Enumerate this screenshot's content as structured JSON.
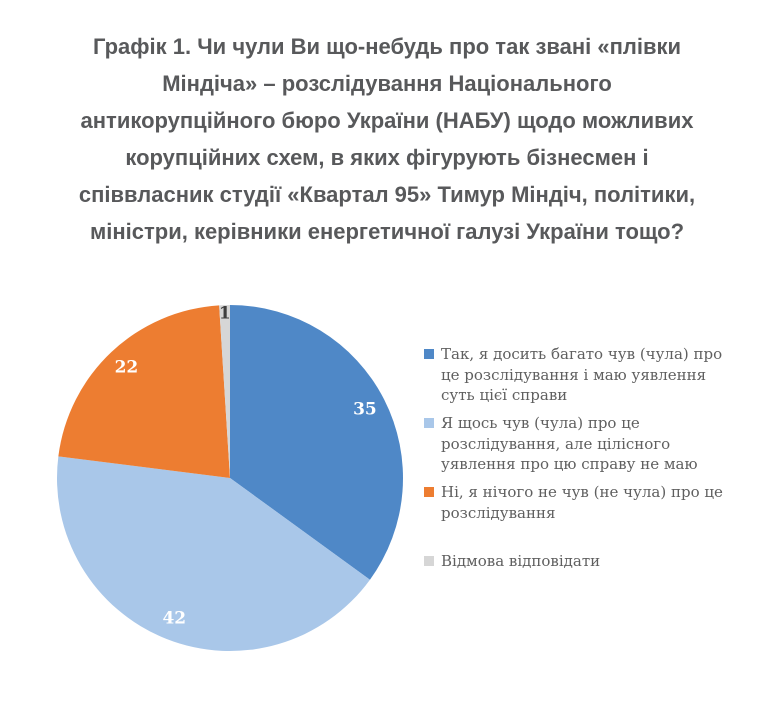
{
  "header": {
    "title_lines": [
      "Графік 1. Чи чули Ви що-небудь про так звані «плівки",
      "Міндіча» – розслідування Національного",
      "антикорупційного бюро України (НАБУ) щодо можливих",
      "корупційних схем, в яких фігурують бізнесмен і",
      "співвласник студії «Квартал 95» Тимур Міндіч, політики,",
      "міністри, керівники енергетичної галузі України тощо?"
    ]
  },
  "chart_data": {
    "type": "pie",
    "title": "Графік 1. Чи чули Ви що-небудь про так звані «плівки Міндіча» – розслідування Національного антикорупційного бюро України (НАБУ) щодо можливих корупційних схем, в яких фігурують бізнесмен і співвласник студії «Квартал 95» Тимур Міндіч, політики, міністри, керівники енергетичної галузі України тощо?",
    "slices": [
      {
        "label": "Так, я досить багато чув (чула) про це розслідування і маю уявлення суть цієї справи",
        "value": 35,
        "color": "#4F88C7",
        "label_color": "#FFFFFF"
      },
      {
        "label": "Я щось чув (чула) про це розслідування, але цілісного уявлення про цю справу не маю",
        "value": 42,
        "color": "#A9C7E9",
        "label_color": "#FFFFFF"
      },
      {
        "label": "Ні, я нічого не чув (не чула) про це розслідування",
        "value": 22,
        "color": "#ED7D31",
        "label_color": "#FFFFFF"
      },
      {
        "label": "Відмова відповідати",
        "value": 1,
        "color": "#D6D6D6",
        "label_color": "#3F3F3F"
      }
    ],
    "start_angle_deg": 0,
    "direction": "clockwise",
    "legend_position": "right",
    "data_labels": "values inside slices",
    "total": 100
  }
}
